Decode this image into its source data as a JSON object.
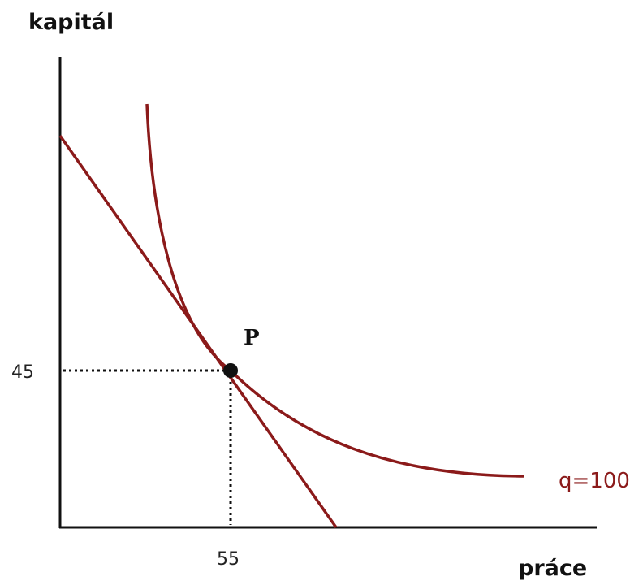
{
  "diagram": {
    "y_axis_label": "kapitál",
    "x_axis_label": "práce",
    "x_tick_label": "55",
    "y_tick_label": "45",
    "point_label": "P",
    "isoquant_label": "q=100",
    "colors": {
      "curve": "#8b1a1a",
      "axis": "#111111",
      "point": "#111111"
    }
  }
}
